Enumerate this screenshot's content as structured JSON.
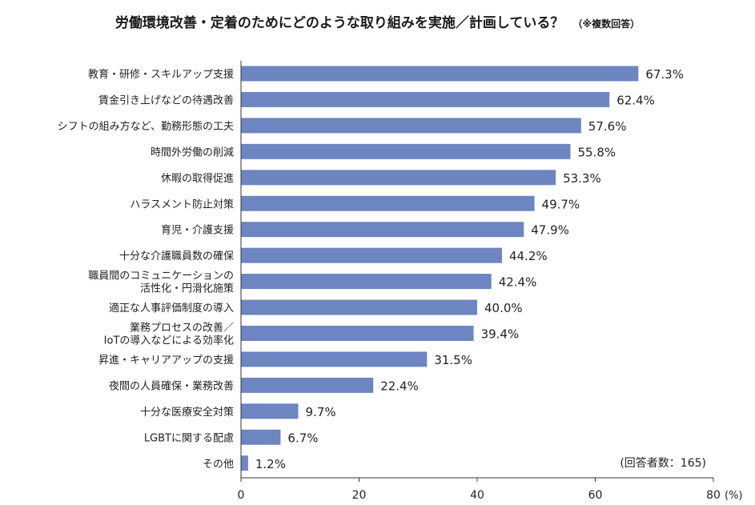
{
  "chart_data": {
    "type": "bar",
    "orientation": "horizontal",
    "title": "労働環境改善・定着のためにどのような取り組みを実施／計画している？",
    "subtitle": "（※複数回答）",
    "categories": [
      [
        "教育・研修・スキルアップ支援"
      ],
      [
        "賃金引き上げなどの待遇改善"
      ],
      [
        "シフトの組み方など、勤務形態の工夫"
      ],
      [
        "時間外労働の削減"
      ],
      [
        "休暇の取得促進"
      ],
      [
        "ハラスメント防止対策"
      ],
      [
        "育児・介護支援"
      ],
      [
        "十分な介護職員数の確保"
      ],
      [
        "職員間のコミュニケーションの",
        "活性化・円滑化施策"
      ],
      [
        "適正な人事評価制度の導入"
      ],
      [
        "業務プロセスの改善／",
        "IoTの導入などによる効率化"
      ],
      [
        "昇進・キャリアアップの支援"
      ],
      [
        "夜間の人員確保・業務改善"
      ],
      [
        "十分な医療安全対策"
      ],
      [
        "LGBTに関する配慮"
      ],
      [
        "その他"
      ]
    ],
    "values": [
      67.3,
      62.4,
      57.6,
      55.8,
      53.3,
      49.7,
      47.9,
      44.2,
      42.4,
      40.0,
      39.4,
      31.5,
      22.4,
      9.7,
      6.7,
      1.2
    ],
    "value_labels": [
      "67.3%",
      "62.4%",
      "57.6%",
      "55.8%",
      "53.3%",
      "49.7%",
      "47.9%",
      "44.2%",
      "42.4%",
      "40.0%",
      "39.4%",
      "31.5%",
      "22.4%",
      "9.7%",
      "6.7%",
      "1.2%"
    ],
    "xlim": [
      0,
      80
    ],
    "xticks": [
      "0",
      "20",
      "40",
      "60",
      "80"
    ],
    "xunit": "(%)",
    "note": "(回答者数：165)",
    "bar_color": "#6d85c0",
    "grid": false
  }
}
